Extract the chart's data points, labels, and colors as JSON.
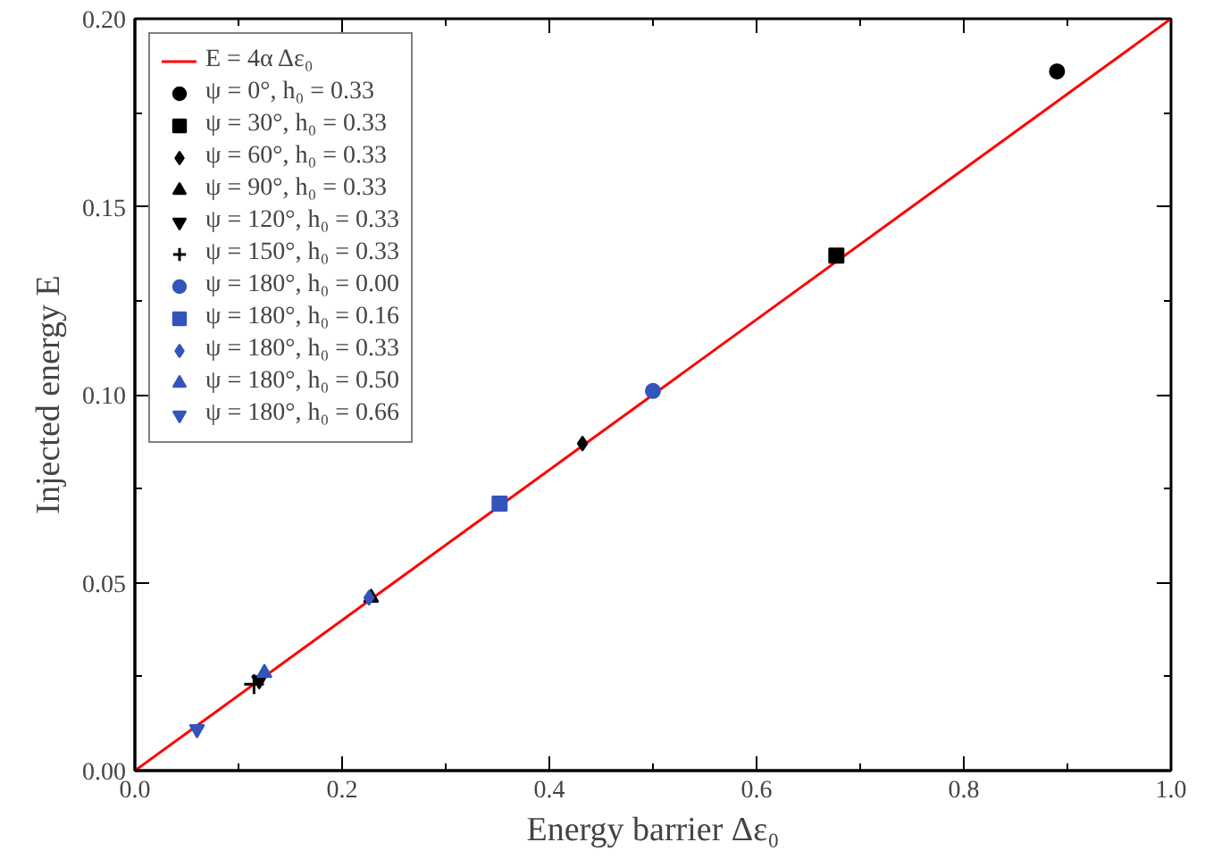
{
  "chart_data": {
    "type": "scatter",
    "xlabel": "Energy barrier Δε₀",
    "ylabel": "Injected energy E",
    "xlim": [
      0,
      1
    ],
    "ylim": [
      0,
      0.2
    ],
    "xticks": [
      {
        "value": 0,
        "label": "0.0"
      },
      {
        "value": 0.1,
        "label": null
      },
      {
        "value": 0.2,
        "label": "0.2"
      },
      {
        "value": 0.3,
        "label": null
      },
      {
        "value": 0.4,
        "label": "0.4"
      },
      {
        "value": 0.5,
        "label": null
      },
      {
        "value": 0.6,
        "label": "0.6"
      },
      {
        "value": 0.7,
        "label": null
      },
      {
        "value": 0.8,
        "label": "0.8"
      },
      {
        "value": 0.9,
        "label": null
      },
      {
        "value": 1,
        "label": "1.0"
      }
    ],
    "yticks": [
      {
        "value": 0,
        "label": "0.00"
      },
      {
        "value": 0.025,
        "label": null
      },
      {
        "value": 0.05,
        "label": "0.05"
      },
      {
        "value": 0.075,
        "label": null
      },
      {
        "value": 0.1,
        "label": "0.10"
      },
      {
        "value": 0.125,
        "label": null
      },
      {
        "value": 0.15,
        "label": "0.15"
      },
      {
        "value": 0.175,
        "label": null
      },
      {
        "value": 0.2,
        "label": "0.20"
      }
    ],
    "grid": false,
    "legend": "top left",
    "series": [
      {
        "name": "E = 4α Δε₀",
        "type": "line",
        "color": "#ff0000",
        "x": [
          0,
          1
        ],
        "values": [
          0,
          0.2
        ]
      },
      {
        "name": "ψ = 0°, h₀ = 0.33",
        "marker": "circle",
        "color": "#000000",
        "x": [
          0.89
        ],
        "values": [
          0.186
        ]
      },
      {
        "name": "ψ = 30°, h₀ = 0.33",
        "marker": "square",
        "color": "#000000",
        "x": [
          0.677
        ],
        "values": [
          0.137
        ]
      },
      {
        "name": "ψ = 60°, h₀ = 0.33",
        "marker": "diamond",
        "color": "#000000",
        "x": [
          0.432
        ],
        "values": [
          0.087
        ]
      },
      {
        "name": "ψ = 90°, h₀ = 0.33",
        "marker": "triangle",
        "color": "#000000",
        "x": [
          0.228
        ],
        "values": [
          0.046
        ]
      },
      {
        "name": "ψ = 120°, h₀ = 0.33",
        "color": "#000000",
        "x": [
          0.12
        ],
        "values": [
          0.024
        ]
      },
      {
        "name": "ψ = 150°, h₀ = 0.33",
        "marker": "cross",
        "color": "#000000",
        "x": [
          0.115
        ],
        "values": [
          0.023
        ]
      },
      {
        "name": "ψ = 180°, h₀ = 0.00",
        "marker": "circle",
        "color": "#3355bb",
        "x": [
          0.5
        ],
        "values": [
          0.101
        ]
      },
      {
        "name": "ψ = 180°, h₀ = 0.16",
        "marker": "square",
        "color": "#3355bb",
        "x": [
          0.352
        ],
        "values": [
          0.071
        ]
      },
      {
        "name": "ψ = 180°, h₀ = 0.33",
        "marker": "diamond",
        "color": "#3355bb",
        "x": [
          0.226
        ],
        "values": [
          0.046
        ]
      },
      {
        "name": "ψ = 180°, h₀ = 0.50",
        "marker": "triangle",
        "color": "#3355bb",
        "x": [
          0.125
        ],
        "values": [
          0.026
        ]
      },
      {
        "name": "ψ = 180°, h₀ = 0.66",
        "color": "#3355bb",
        "x": [
          0.06
        ],
        "values": [
          0.011
        ]
      }
    ]
  }
}
